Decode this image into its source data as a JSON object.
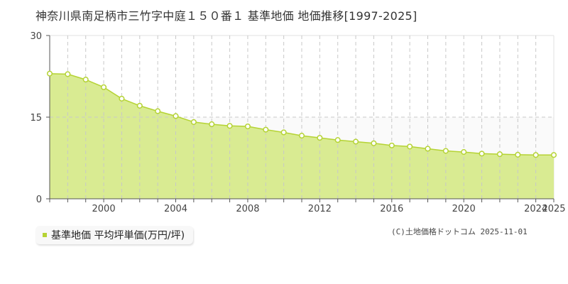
{
  "title": "神奈川県南足柄市三竹字中庭１５０番１ 基準地価 地価推移[1997-2025]",
  "legend": {
    "label": "基準地価 平均坪単価(万円/坪)",
    "color": "#b5d334"
  },
  "credit": "(C)土地価格ドットコム 2025-11-01",
  "colors": {
    "area_fill": "#d9eb92",
    "line": "#b5d334",
    "marker_stroke": "#b5d334",
    "marker_fill": "#ffffff",
    "grid": "#c8c8c8",
    "upper_band": "#fafafa"
  },
  "chart_data": {
    "type": "area",
    "title": "神奈川県南足柄市三竹字中庭１５０番１ 基準地価 地価推移[1997-2025]",
    "xlabel": "",
    "ylabel": "",
    "ylim": [
      0,
      30
    ],
    "yticks": [
      0,
      15,
      30
    ],
    "xticks": [
      2000,
      2004,
      2008,
      2012,
      2016,
      2020,
      2024,
      2025
    ],
    "grid": true,
    "legend_position": "bottom-left",
    "series": [
      {
        "name": "基準地価 平均坪単価(万円/坪)",
        "x": [
          1997,
          1998,
          1999,
          2000,
          2001,
          2002,
          2003,
          2004,
          2005,
          2006,
          2007,
          2008,
          2009,
          2010,
          2011,
          2012,
          2013,
          2014,
          2015,
          2016,
          2017,
          2018,
          2019,
          2020,
          2021,
          2022,
          2023,
          2024,
          2025
        ],
        "values": [
          23.0,
          22.9,
          21.9,
          20.5,
          18.4,
          17.1,
          16.1,
          15.2,
          14.1,
          13.7,
          13.4,
          13.3,
          12.7,
          12.2,
          11.6,
          11.2,
          10.8,
          10.5,
          10.2,
          9.8,
          9.6,
          9.2,
          8.8,
          8.6,
          8.3,
          8.2,
          8.1,
          8.05,
          8.05
        ]
      }
    ]
  }
}
